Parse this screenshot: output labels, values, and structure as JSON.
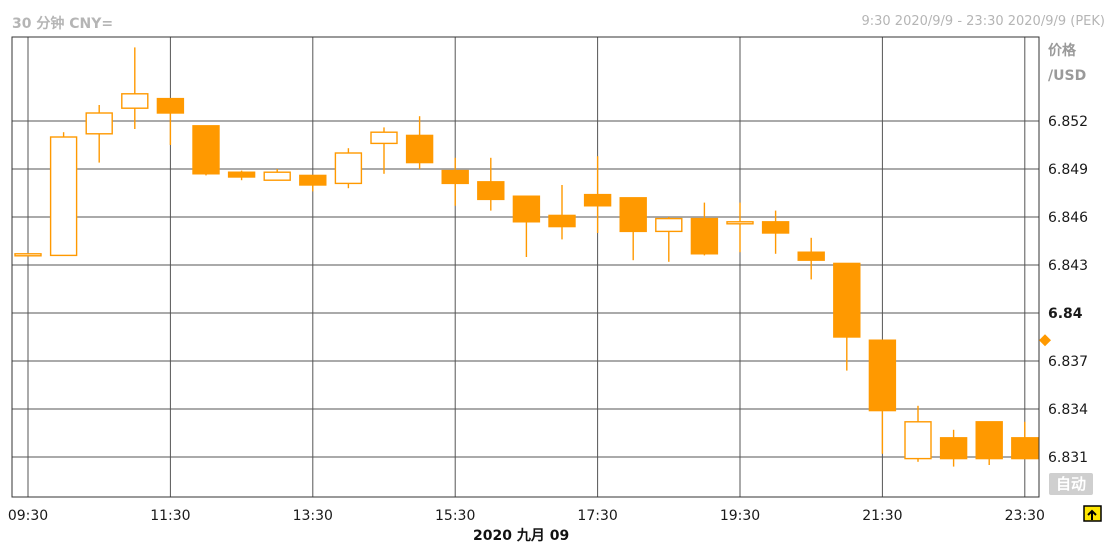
{
  "header": {
    "title": "30 分钟 CNY=",
    "range": "9:30 2020/9/9 - 23:30 2020/9/9 (PEK)"
  },
  "axis": {
    "unit_line1": "价格",
    "unit_line2": "/USD",
    "date_label": "2020 九月 09",
    "auto_button": "自动"
  },
  "colors": {
    "candle": "#ff9900",
    "grid": "#555555",
    "frame": "#333333"
  },
  "icons": {
    "zoom": "zoom-icon"
  },
  "chart_data": {
    "type": "candlestick",
    "title": "30 分钟 CNY=",
    "x_ticks": [
      "09:30",
      "11:30",
      "13:30",
      "15:30",
      "17:30",
      "19:30",
      "21:30",
      "23:30"
    ],
    "y_ticks": [
      "6.852",
      "6.849",
      "6.846",
      "6.843",
      "6.84",
      "6.837",
      "6.834",
      "6.831"
    ],
    "ylim": [
      6.8292,
      6.8557
    ],
    "grid": true,
    "last_marker": 6.8383,
    "candles": [
      {
        "time": "09:30",
        "open": 6.8437,
        "high": 6.8437,
        "low": 6.8437,
        "close": 6.8437
      },
      {
        "time": "10:00",
        "open": 6.8436,
        "high": 6.8513,
        "low": 6.8436,
        "close": 6.851
      },
      {
        "time": "10:30",
        "open": 6.8512,
        "high": 6.853,
        "low": 6.8494,
        "close": 6.8525
      },
      {
        "time": "11:00",
        "open": 6.8528,
        "high": 6.8566,
        "low": 6.8515,
        "close": 6.8537
      },
      {
        "time": "11:30",
        "open": 6.8534,
        "high": 6.8534,
        "low": 6.8505,
        "close": 6.8525
      },
      {
        "time": "12:00",
        "open": 6.8517,
        "high": 6.8517,
        "low": 6.8486,
        "close": 6.8487
      },
      {
        "time": "12:30",
        "open": 6.8488,
        "high": 6.8489,
        "low": 6.8483,
        "close": 6.8485
      },
      {
        "time": "13:00",
        "open": 6.8483,
        "high": 6.849,
        "low": 6.8483,
        "close": 6.8488
      },
      {
        "time": "13:30",
        "open": 6.8486,
        "high": 6.8486,
        "low": 6.8476,
        "close": 6.848
      },
      {
        "time": "14:00",
        "open": 6.8481,
        "high": 6.8503,
        "low": 6.8478,
        "close": 6.85
      },
      {
        "time": "14:30",
        "open": 6.8506,
        "high": 6.8516,
        "low": 6.8487,
        "close": 6.8513
      },
      {
        "time": "15:00",
        "open": 6.8511,
        "high": 6.8523,
        "low": 6.849,
        "close": 6.8494
      },
      {
        "time": "15:30",
        "open": 6.8489,
        "high": 6.8497,
        "low": 6.8467,
        "close": 6.8481
      },
      {
        "time": "16:00",
        "open": 6.8482,
        "high": 6.8497,
        "low": 6.8464,
        "close": 6.8471
      },
      {
        "time": "16:30",
        "open": 6.8473,
        "high": 6.8473,
        "low": 6.8435,
        "close": 6.8457
      },
      {
        "time": "17:00",
        "open": 6.8461,
        "high": 6.848,
        "low": 6.8446,
        "close": 6.8454
      },
      {
        "time": "17:30",
        "open": 6.8474,
        "high": 6.8498,
        "low": 6.845,
        "close": 6.8467
      },
      {
        "time": "18:00",
        "open": 6.8472,
        "high": 6.8472,
        "low": 6.8433,
        "close": 6.8451
      },
      {
        "time": "18:30",
        "open": 6.8451,
        "high": 6.846,
        "low": 6.8432,
        "close": 6.8459
      },
      {
        "time": "19:00",
        "open": 6.8459,
        "high": 6.8469,
        "low": 6.8436,
        "close": 6.8437
      },
      {
        "time": "19:30",
        "open": 6.8457,
        "high": 6.8469,
        "low": 6.8438,
        "close": 6.8457
      },
      {
        "time": "20:00",
        "open": 6.8457,
        "high": 6.8464,
        "low": 6.8437,
        "close": 6.845
      },
      {
        "time": "20:30",
        "open": 6.8438,
        "high": 6.8447,
        "low": 6.8421,
        "close": 6.8433
      },
      {
        "time": "21:00",
        "open": 6.8431,
        "high": 6.8431,
        "low": 6.8364,
        "close": 6.8385
      },
      {
        "time": "21:30",
        "open": 6.8383,
        "high": 6.8383,
        "low": 6.8312,
        "close": 6.8339
      },
      {
        "time": "22:00",
        "open": 6.8309,
        "high": 6.8342,
        "low": 6.8307,
        "close": 6.8332
      },
      {
        "time": "22:30",
        "open": 6.8322,
        "high": 6.8327,
        "low": 6.8304,
        "close": 6.8309
      },
      {
        "time": "23:00",
        "open": 6.8332,
        "high": 6.8332,
        "low": 6.8305,
        "close": 6.8309
      },
      {
        "time": "23:30",
        "open": 6.8322,
        "high": 6.8332,
        "low": 6.831,
        "close": 6.8309
      }
    ]
  }
}
